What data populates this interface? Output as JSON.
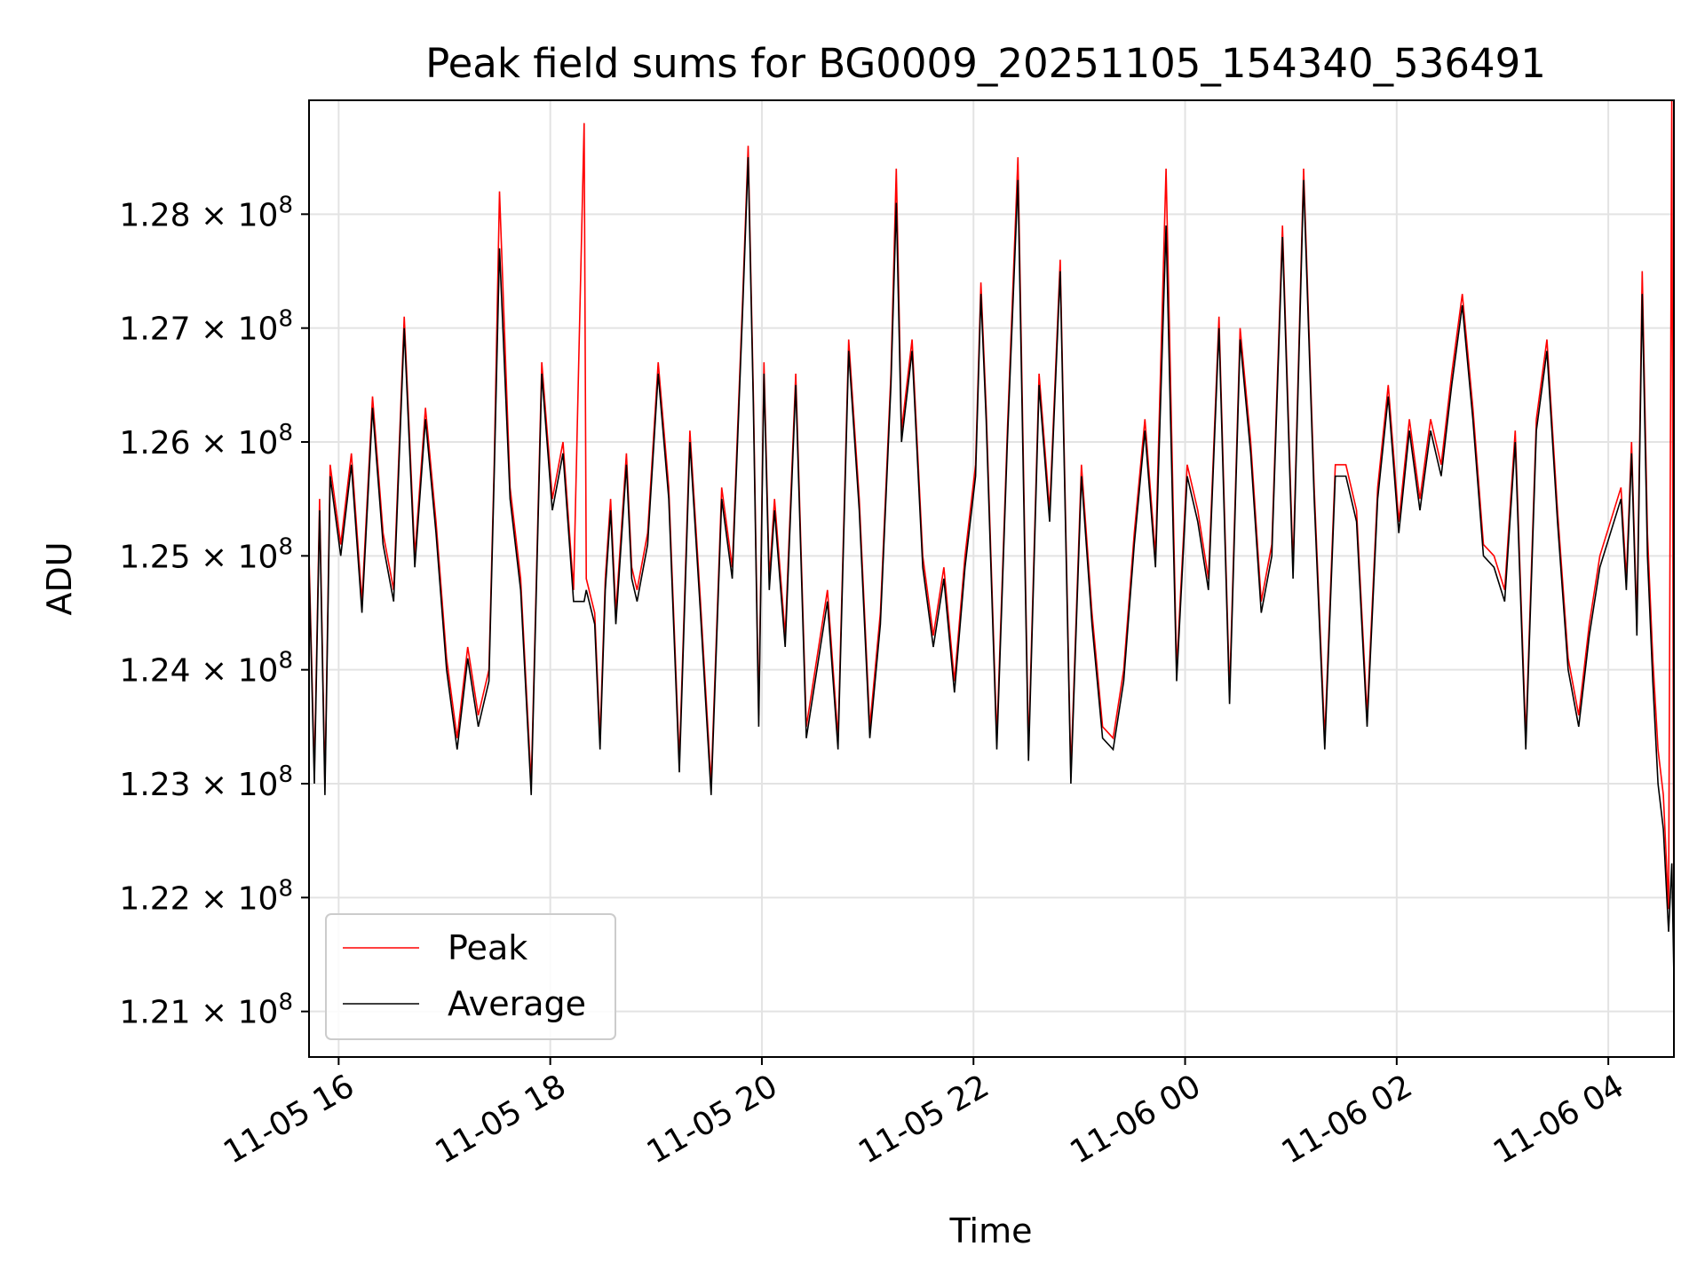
{
  "chart_data": {
    "type": "line",
    "title": "Peak field sums for BG0009_20251105_154340_536491",
    "xlabel": "Time",
    "ylabel": "ADU",
    "x_unit": "hours since 11-05 15:43",
    "xlim": [
      0,
      12.9
    ],
    "ylim": [
      120.6,
      129.0
    ],
    "y_scale_note": "values in units of 1e6 ADU",
    "grid": true,
    "legend_location": "lower-left",
    "x_ticks": [
      {
        "value": 0.28,
        "label": "11-05 16"
      },
      {
        "value": 2.28,
        "label": "11-05 18"
      },
      {
        "value": 4.28,
        "label": "11-05 20"
      },
      {
        "value": 6.28,
        "label": "11-05 22"
      },
      {
        "value": 8.28,
        "label": "11-06 00"
      },
      {
        "value": 10.28,
        "label": "11-06 02"
      },
      {
        "value": 12.28,
        "label": "11-06 04"
      }
    ],
    "y_ticks": [
      {
        "value": 121.0,
        "mantissa": "1.21",
        "times": "×",
        "base": "10",
        "exp": "8"
      },
      {
        "value": 122.0,
        "mantissa": "1.22",
        "times": "×",
        "base": "10",
        "exp": "8"
      },
      {
        "value": 123.0,
        "mantissa": "1.23",
        "times": "×",
        "base": "10",
        "exp": "8"
      },
      {
        "value": 124.0,
        "mantissa": "1.24",
        "times": "×",
        "base": "10",
        "exp": "8"
      },
      {
        "value": 125.0,
        "mantissa": "1.25",
        "times": "×",
        "base": "10",
        "exp": "8"
      },
      {
        "value": 126.0,
        "mantissa": "1.26",
        "times": "×",
        "base": "10",
        "exp": "8"
      },
      {
        "value": 127.0,
        "mantissa": "1.27",
        "times": "×",
        "base": "10",
        "exp": "8"
      },
      {
        "value": 128.0,
        "mantissa": "1.28",
        "times": "×",
        "base": "10",
        "exp": "8"
      }
    ],
    "series": [
      {
        "name": "Peak",
        "color": "#ff0000",
        "x": [
          0.0,
          0.05,
          0.1,
          0.15,
          0.2,
          0.3,
          0.4,
          0.5,
          0.6,
          0.7,
          0.8,
          0.9,
          1.0,
          1.1,
          1.2,
          1.3,
          1.4,
          1.5,
          1.6,
          1.7,
          1.75,
          1.8,
          1.9,
          2.0,
          2.1,
          2.2,
          2.3,
          2.4,
          2.5,
          2.6,
          2.62,
          2.7,
          2.75,
          2.8,
          2.85,
          2.9,
          3.0,
          3.05,
          3.1,
          3.2,
          3.3,
          3.4,
          3.5,
          3.6,
          3.7,
          3.8,
          3.9,
          4.0,
          4.1,
          4.15,
          4.2,
          4.25,
          4.3,
          4.35,
          4.4,
          4.5,
          4.6,
          4.7,
          4.8,
          4.9,
          5.0,
          5.1,
          5.2,
          5.3,
          5.4,
          5.5,
          5.55,
          5.6,
          5.7,
          5.8,
          5.9,
          6.0,
          6.1,
          6.2,
          6.3,
          6.35,
          6.4,
          6.5,
          6.6,
          6.7,
          6.8,
          6.9,
          7.0,
          7.1,
          7.2,
          7.3,
          7.4,
          7.5,
          7.6,
          7.7,
          7.8,
          7.9,
          8.0,
          8.1,
          8.2,
          8.3,
          8.4,
          8.5,
          8.6,
          8.7,
          8.8,
          8.9,
          9.0,
          9.1,
          9.2,
          9.3,
          9.4,
          9.5,
          9.6,
          9.7,
          9.8,
          9.9,
          10.0,
          10.1,
          10.2,
          10.3,
          10.4,
          10.5,
          10.6,
          10.7,
          10.8,
          10.9,
          11.0,
          11.1,
          11.2,
          11.3,
          11.4,
          11.5,
          11.6,
          11.7,
          11.8,
          11.9,
          12.0,
          12.1,
          12.2,
          12.3,
          12.4,
          12.45,
          12.5,
          12.55,
          12.6,
          12.65,
          12.7,
          12.75,
          12.8,
          12.85,
          12.88,
          12.9
        ],
        "y": [
          125.0,
          123.1,
          125.5,
          123.0,
          125.8,
          125.1,
          125.9,
          124.6,
          126.4,
          125.2,
          124.7,
          127.1,
          125.0,
          126.3,
          125.3,
          124.1,
          123.4,
          124.2,
          123.6,
          124.0,
          125.8,
          128.2,
          125.6,
          124.8,
          123.0,
          126.7,
          125.5,
          126.0,
          124.7,
          128.8,
          124.8,
          124.5,
          123.4,
          124.8,
          125.5,
          124.5,
          125.9,
          124.9,
          124.7,
          125.2,
          126.7,
          125.6,
          123.2,
          126.1,
          124.6,
          123.0,
          125.6,
          124.9,
          127.3,
          128.6,
          126.4,
          123.6,
          126.7,
          124.8,
          125.5,
          124.3,
          126.6,
          123.5,
          124.1,
          124.7,
          123.4,
          126.9,
          125.5,
          123.5,
          124.5,
          126.6,
          128.4,
          126.1,
          126.9,
          125.0,
          124.3,
          124.9,
          123.9,
          125.0,
          125.8,
          127.4,
          126.3,
          123.4,
          126.1,
          128.5,
          123.3,
          126.6,
          125.4,
          127.6,
          123.1,
          125.8,
          124.5,
          123.5,
          123.4,
          124.0,
          125.2,
          126.2,
          125.0,
          128.4,
          124.0,
          125.8,
          125.4,
          124.8,
          127.1,
          123.8,
          127.0,
          126.0,
          124.6,
          125.1,
          127.9,
          124.9,
          128.4,
          125.6,
          123.4,
          125.8,
          125.8,
          125.4,
          123.6,
          125.6,
          126.5,
          125.3,
          126.2,
          125.5,
          126.2,
          125.8,
          126.6,
          127.3,
          126.3,
          125.1,
          125.0,
          124.7,
          126.1,
          123.4,
          126.2,
          126.9,
          125.4,
          124.1,
          123.6,
          124.4,
          125.0,
          125.3,
          125.6,
          124.8,
          126.0,
          124.4,
          127.5,
          125.2,
          124.1,
          123.3,
          122.9,
          121.9,
          129.0,
          121.4
        ]
      },
      {
        "name": "Average",
        "color": "#000000",
        "x": [
          0.0,
          0.05,
          0.1,
          0.15,
          0.2,
          0.3,
          0.4,
          0.5,
          0.6,
          0.7,
          0.8,
          0.9,
          1.0,
          1.1,
          1.2,
          1.3,
          1.4,
          1.5,
          1.6,
          1.7,
          1.75,
          1.8,
          1.9,
          2.0,
          2.1,
          2.2,
          2.3,
          2.4,
          2.5,
          2.6,
          2.62,
          2.7,
          2.75,
          2.8,
          2.85,
          2.9,
          3.0,
          3.05,
          3.1,
          3.2,
          3.3,
          3.4,
          3.5,
          3.6,
          3.7,
          3.8,
          3.9,
          4.0,
          4.1,
          4.15,
          4.2,
          4.25,
          4.3,
          4.35,
          4.4,
          4.5,
          4.6,
          4.7,
          4.8,
          4.9,
          5.0,
          5.1,
          5.2,
          5.3,
          5.4,
          5.5,
          5.55,
          5.6,
          5.7,
          5.8,
          5.9,
          6.0,
          6.1,
          6.2,
          6.3,
          6.35,
          6.4,
          6.5,
          6.6,
          6.7,
          6.8,
          6.9,
          7.0,
          7.1,
          7.2,
          7.3,
          7.4,
          7.5,
          7.6,
          7.7,
          7.8,
          7.9,
          8.0,
          8.1,
          8.2,
          8.3,
          8.4,
          8.5,
          8.6,
          8.7,
          8.8,
          8.9,
          9.0,
          9.1,
          9.2,
          9.3,
          9.4,
          9.5,
          9.6,
          9.7,
          9.8,
          9.9,
          10.0,
          10.1,
          10.2,
          10.3,
          10.4,
          10.5,
          10.6,
          10.7,
          10.8,
          10.9,
          11.0,
          11.1,
          11.2,
          11.3,
          11.4,
          11.5,
          11.6,
          11.7,
          11.8,
          11.9,
          12.0,
          12.1,
          12.2,
          12.3,
          12.4,
          12.45,
          12.5,
          12.55,
          12.6,
          12.65,
          12.7,
          12.75,
          12.8,
          12.85,
          12.88,
          12.9
        ],
        "y": [
          124.9,
          123.0,
          125.4,
          122.9,
          125.7,
          125.0,
          125.8,
          124.5,
          126.3,
          125.1,
          124.6,
          127.0,
          124.9,
          126.2,
          125.2,
          124.0,
          123.3,
          124.1,
          123.5,
          123.9,
          125.7,
          127.7,
          125.5,
          124.7,
          122.9,
          126.6,
          125.4,
          125.9,
          124.6,
          124.6,
          124.7,
          124.4,
          123.3,
          124.7,
          125.4,
          124.4,
          125.8,
          124.8,
          124.6,
          125.1,
          126.6,
          125.5,
          123.1,
          126.0,
          124.5,
          122.9,
          125.5,
          124.8,
          127.2,
          128.5,
          126.3,
          123.5,
          126.6,
          124.7,
          125.4,
          124.2,
          126.5,
          123.4,
          124.0,
          124.6,
          123.3,
          126.8,
          125.4,
          123.4,
          124.4,
          126.5,
          128.1,
          126.0,
          126.8,
          124.9,
          124.2,
          124.8,
          123.8,
          124.9,
          125.7,
          127.3,
          126.2,
          123.3,
          126.0,
          128.3,
          123.2,
          126.5,
          125.3,
          127.5,
          123.0,
          125.7,
          124.4,
          123.4,
          123.3,
          123.9,
          125.1,
          126.1,
          124.9,
          127.9,
          123.9,
          125.7,
          125.3,
          124.7,
          127.0,
          123.7,
          126.9,
          125.9,
          124.5,
          125.0,
          127.8,
          124.8,
          128.3,
          125.5,
          123.3,
          125.7,
          125.7,
          125.3,
          123.5,
          125.5,
          126.4,
          125.2,
          126.1,
          125.4,
          126.1,
          125.7,
          126.5,
          127.2,
          126.2,
          125.0,
          124.9,
          124.6,
          126.0,
          123.3,
          126.1,
          126.8,
          125.3,
          124.0,
          123.5,
          124.3,
          124.9,
          125.2,
          125.5,
          124.7,
          125.9,
          124.3,
          127.3,
          125.0,
          123.9,
          123.0,
          122.6,
          121.7,
          122.3,
          121.3
        ]
      }
    ]
  }
}
